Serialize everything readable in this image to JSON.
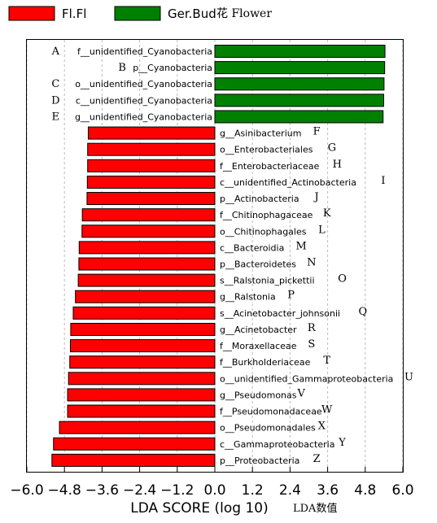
{
  "colors": {
    "negative": "#ff0000",
    "positive": "#008000",
    "grid": "#bbbbbb",
    "axis": "#000000"
  },
  "legend": [
    {
      "label": "Fl.Fl",
      "color": "#ff0000"
    },
    {
      "label": "Ger.Bud",
      "color": "#008000"
    }
  ],
  "legend_note": "花 Flower",
  "chart_data": {
    "type": "bar",
    "orientation": "horizontal",
    "xlabel": "LDA SCORE (log 10)",
    "xlabel_note": "LDA数值",
    "xlim": [
      -6.0,
      6.0
    ],
    "xticks": [
      "−6.0",
      "−4.8",
      "−3.6",
      "−2.4",
      "−1.2",
      "0.0",
      "1.2",
      "2.4",
      "3.6",
      "4.8",
      "6.0"
    ],
    "grid": "vertical dashed",
    "legend_position": "top-left",
    "series": [
      {
        "name": "Fl.Fl",
        "color": "#ff0000"
      },
      {
        "name": "Ger.Bud",
        "color": "#008000"
      }
    ],
    "bars": [
      {
        "letter": "A",
        "label": "f__unidentified_Cyanobacteria",
        "value": 5.43,
        "group": "Ger.Bud"
      },
      {
        "letter": "B",
        "label": "p__Cyanobacteria",
        "value": 5.42,
        "group": "Ger.Bud"
      },
      {
        "letter": "C",
        "label": "o__unidentified_Cyanobacteria",
        "value": 5.4,
        "group": "Ger.Bud"
      },
      {
        "letter": "D",
        "label": "c__unidentified_Cyanobacteria",
        "value": 5.39,
        "group": "Ger.Bud"
      },
      {
        "letter": "E",
        "label": "g__unidentified_Cyanobacteria",
        "value": 5.37,
        "group": "Ger.Bud"
      },
      {
        "letter": "F",
        "label": "g__Asinibacterium",
        "value": -4.04,
        "group": "Fl.Fl"
      },
      {
        "letter": "G",
        "label": "o__Enterobacteriales",
        "value": -4.06,
        "group": "Fl.Fl"
      },
      {
        "letter": "H",
        "label": "f__Enterobacteriaceae",
        "value": -4.06,
        "group": "Fl.Fl"
      },
      {
        "letter": "I",
        "label": "c__unidentified_Actinobacteria",
        "value": -4.07,
        "group": "Fl.Fl"
      },
      {
        "letter": "J",
        "label": "p__Actinobacteria",
        "value": -4.08,
        "group": "Fl.Fl"
      },
      {
        "letter": "K",
        "label": "f__Chitinophagaceae",
        "value": -4.23,
        "group": "Fl.Fl"
      },
      {
        "letter": "L",
        "label": "o__Chitinophagales",
        "value": -4.24,
        "group": "Fl.Fl"
      },
      {
        "letter": "M",
        "label": "c__Bacteroidia",
        "value": -4.33,
        "group": "Fl.Fl"
      },
      {
        "letter": "N",
        "label": "p__Bacteroidetes",
        "value": -4.34,
        "group": "Fl.Fl"
      },
      {
        "letter": "O",
        "label": "s__Ralstonia_pickettii",
        "value": -4.36,
        "group": "Fl.Fl"
      },
      {
        "letter": "P",
        "label": "g__Ralstonia",
        "value": -4.45,
        "group": "Fl.Fl"
      },
      {
        "letter": "Q",
        "label": "s__Acinetobacter_johnsonii",
        "value": -4.52,
        "group": "Fl.Fl"
      },
      {
        "letter": "R",
        "label": "g__Acinetobacter",
        "value": -4.6,
        "group": "Fl.Fl"
      },
      {
        "letter": "S",
        "label": "f__Moraxellaceae",
        "value": -4.61,
        "group": "Fl.Fl"
      },
      {
        "letter": "T",
        "label": "f__Burkholderiaceae",
        "value": -4.63,
        "group": "Fl.Fl"
      },
      {
        "letter": "U",
        "label": "o__unidentified_Gammaproteobacteria",
        "value": -4.67,
        "group": "Fl.Fl"
      },
      {
        "letter": "V",
        "label": "g__Pseudomonas",
        "value": -4.7,
        "group": "Fl.Fl"
      },
      {
        "letter": "W",
        "label": "f__Pseudomonadaceae",
        "value": -4.7,
        "group": "Fl.Fl"
      },
      {
        "letter": "X",
        "label": "o__Pseudomonadales",
        "value": -4.96,
        "group": "Fl.Fl"
      },
      {
        "letter": "Y",
        "label": "c__Gammaproteobacteria",
        "value": -5.15,
        "group": "Fl.Fl"
      },
      {
        "letter": "Z",
        "label": "p__Proteobacteria",
        "value": -5.2,
        "group": "Fl.Fl"
      }
    ]
  }
}
